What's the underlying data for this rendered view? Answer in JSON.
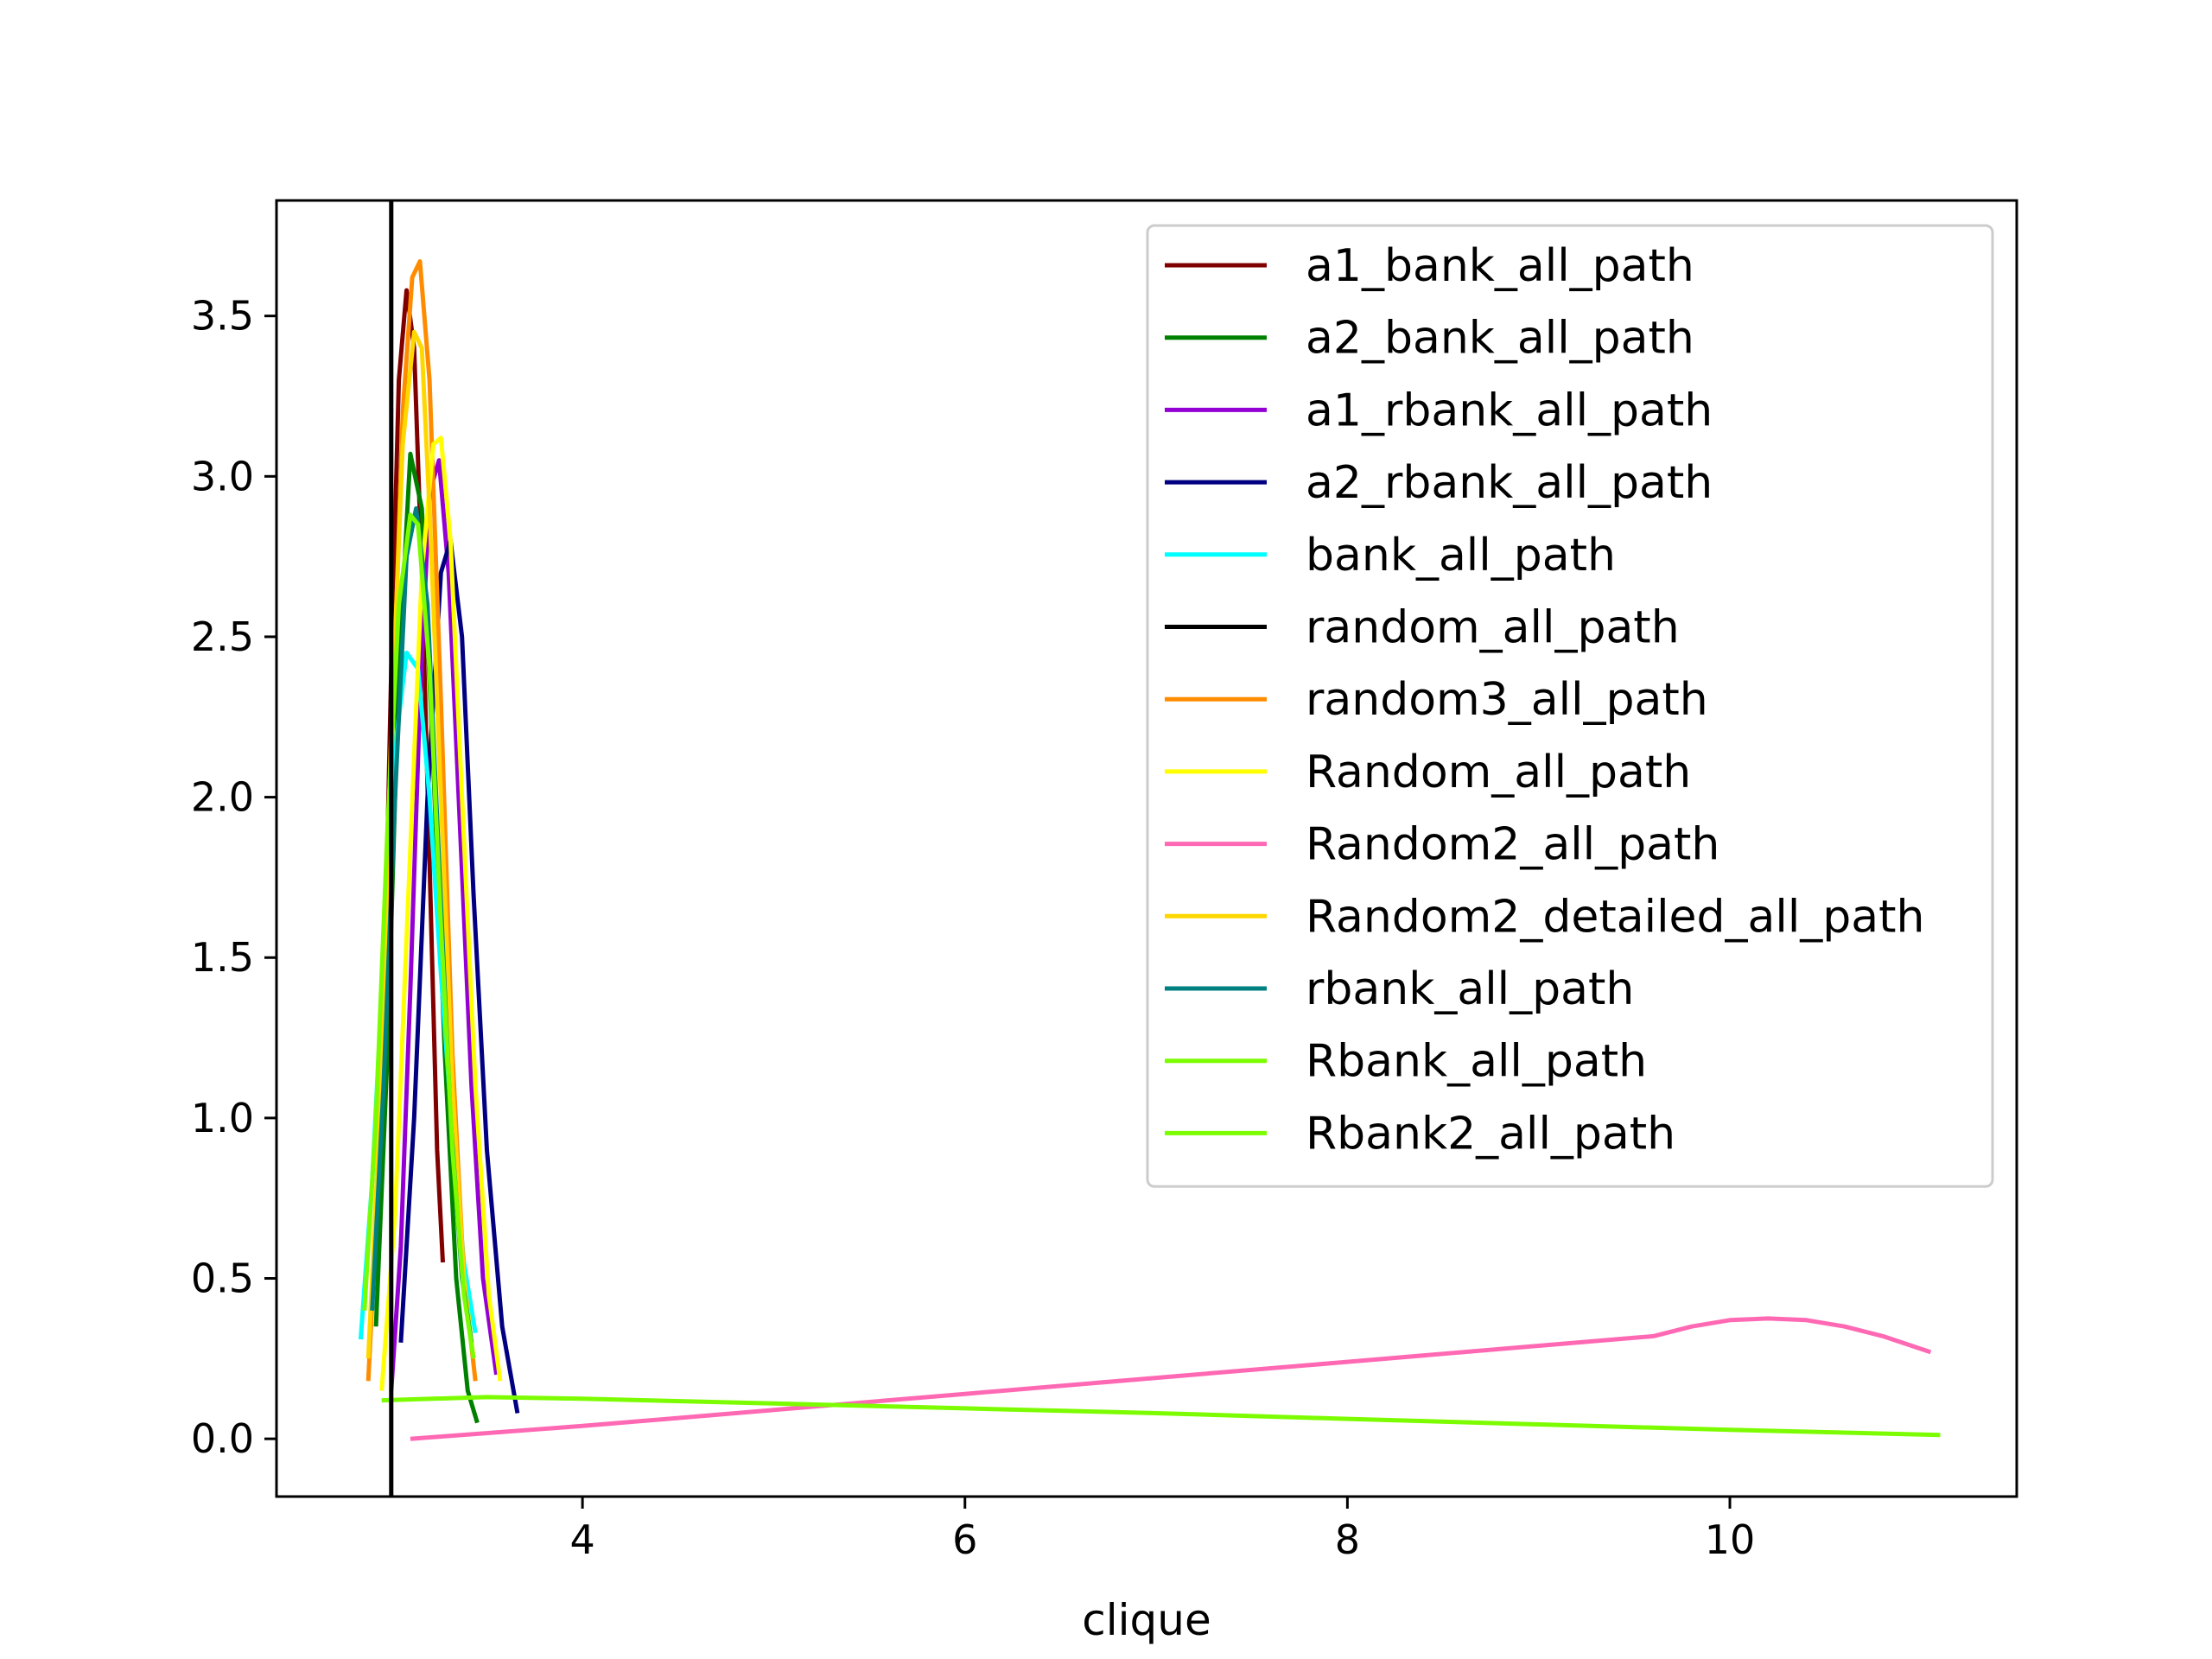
{
  "chart_data": {
    "type": "line",
    "title": "",
    "xlabel": "clique",
    "ylabel": "",
    "xlim": [
      2.4,
      11.5
    ],
    "ylim": [
      -0.18,
      3.86
    ],
    "xticks": [
      4,
      6,
      8,
      10
    ],
    "yticks": [
      0.0,
      0.5,
      1.0,
      1.5,
      2.0,
      2.5,
      3.0,
      3.5
    ],
    "xtick_labels": [
      "4",
      "6",
      "8",
      "10"
    ],
    "ytick_labels": [
      "0.0",
      "0.5",
      "1.0",
      "1.5",
      "2.0",
      "2.5",
      "3.0",
      "3.5"
    ],
    "grid": false,
    "legend_position": "top-right",
    "vline": {
      "x": 3.0,
      "color": "#000000"
    },
    "series": [
      {
        "name": "a1_bank_all_path",
        "color": "#800000",
        "x": [
          2.92,
          2.96,
          3.0,
          3.04,
          3.08,
          3.12,
          3.16,
          3.2,
          3.24,
          3.27
        ],
        "y": [
          0.5,
          1.3,
          2.4,
          3.3,
          3.58,
          3.4,
          2.7,
          1.8,
          0.9,
          0.55
        ]
      },
      {
        "name": "a2_bank_all_path",
        "color": "#008000",
        "x": [
          2.92,
          2.98,
          3.04,
          3.1,
          3.16,
          3.22,
          3.28,
          3.34,
          3.4,
          3.45
        ],
        "y": [
          0.35,
          1.2,
          2.4,
          3.07,
          2.9,
          2.1,
          1.2,
          0.5,
          0.15,
          0.05
        ]
      },
      {
        "name": "a1_rbank_all_path",
        "color": "#9400d3",
        "x": [
          3.0,
          3.05,
          3.1,
          3.15,
          3.2,
          3.25,
          3.3,
          3.36,
          3.42,
          3.48,
          3.55
        ],
        "y": [
          0.15,
          0.6,
          1.4,
          2.3,
          2.95,
          3.05,
          2.7,
          1.9,
          1.1,
          0.5,
          0.2
        ]
      },
      {
        "name": "a2_rbank_all_path",
        "color": "#000080",
        "x": [
          3.05,
          3.12,
          3.19,
          3.26,
          3.31,
          3.37,
          3.43,
          3.5,
          3.58,
          3.66
        ],
        "y": [
          0.3,
          1.0,
          2.0,
          2.7,
          2.8,
          2.5,
          1.7,
          0.9,
          0.35,
          0.08
        ]
      },
      {
        "name": "bank_all_path",
        "color": "#00ffff",
        "x": [
          2.84,
          2.9,
          2.96,
          3.02,
          3.08,
          3.14,
          3.2,
          3.26,
          3.32,
          3.38,
          3.44
        ],
        "y": [
          0.31,
          0.8,
          1.5,
          2.15,
          2.45,
          2.4,
          2.0,
          1.45,
          0.95,
          0.55,
          0.33
        ]
      },
      {
        "name": "random_all_path",
        "color": "#000000",
        "x": [],
        "y": []
      },
      {
        "name": "random3_all_path",
        "color": "#ff8c00",
        "x": [
          2.88,
          2.94,
          3.0,
          3.06,
          3.11,
          3.15,
          3.2,
          3.26,
          3.32,
          3.38,
          3.44
        ],
        "y": [
          0.18,
          0.9,
          2.1,
          3.2,
          3.62,
          3.67,
          3.3,
          2.3,
          1.2,
          0.5,
          0.18
        ]
      },
      {
        "name": "Random_all_path",
        "color": "#ffff00",
        "x": [
          2.95,
          3.02,
          3.09,
          3.16,
          3.22,
          3.26,
          3.31,
          3.37,
          3.44,
          3.51,
          3.57
        ],
        "y": [
          0.15,
          0.7,
          1.7,
          2.7,
          3.1,
          3.12,
          2.8,
          2.0,
          1.1,
          0.45,
          0.18
        ]
      },
      {
        "name": "Random2_all_path",
        "color": "#ff69b4",
        "x": [
          3.1,
          4.0,
          5.0,
          6.0,
          7.0,
          8.0,
          9.0,
          9.6,
          9.8,
          10.0,
          10.2,
          10.4,
          10.6,
          10.8,
          11.05
        ],
        "y": [
          0.0,
          0.04,
          0.09,
          0.14,
          0.19,
          0.24,
          0.29,
          0.32,
          0.35,
          0.37,
          0.375,
          0.37,
          0.35,
          0.32,
          0.27
        ]
      },
      {
        "name": "Random2_detailed_all_path",
        "color": "#ffd700",
        "x": [
          2.88,
          2.94,
          3.0,
          3.06,
          3.12,
          3.16,
          3.2,
          3.26,
          3.32,
          3.38,
          3.43
        ],
        "y": [
          0.25,
          1.0,
          2.2,
          3.1,
          3.45,
          3.4,
          2.9,
          2.0,
          1.1,
          0.5,
          0.25
        ]
      },
      {
        "name": "rbank_all_path",
        "color": "#008080",
        "x": [
          2.9,
          2.96,
          3.02,
          3.08,
          3.13,
          3.19,
          3.25,
          3.31,
          3.37,
          3.42
        ],
        "y": [
          0.4,
          1.1,
          2.0,
          2.75,
          2.9,
          2.6,
          1.8,
          1.0,
          0.5,
          0.3
        ]
      },
      {
        "name": "Rbank_all_path",
        "color": "#7cfc00",
        "x": [
          2.86,
          2.92,
          2.98,
          3.04,
          3.1,
          3.14,
          3.2,
          3.26,
          3.32,
          3.38,
          3.43
        ],
        "y": [
          0.4,
          1.0,
          1.9,
          2.6,
          2.88,
          2.85,
          2.4,
          1.6,
          0.9,
          0.45,
          0.25
        ]
      },
      {
        "name": "Rbank2_all_path",
        "color": "#7cfc00",
        "x": [
          2.95,
          3.5,
          4.0,
          5.0,
          6.0,
          7.0,
          8.0,
          9.0,
          10.0,
          11.1
        ],
        "y": [
          0.12,
          0.13,
          0.125,
          0.11,
          0.095,
          0.08,
          0.062,
          0.045,
          0.028,
          0.012
        ]
      }
    ]
  }
}
